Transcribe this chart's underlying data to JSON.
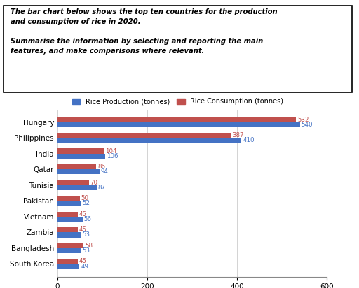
{
  "countries": [
    "Hungary",
    "Philippines",
    "India",
    "Qatar",
    "Tunisia",
    "Pakistan",
    "Vietnam",
    "Zambia",
    "Bangladesh",
    "South Korea"
  ],
  "production": [
    540,
    410,
    106,
    94,
    87,
    52,
    56,
    53,
    53,
    49
  ],
  "consumption": [
    532,
    387,
    104,
    86,
    70,
    50,
    45,
    45,
    58,
    45
  ],
  "prod_color": "#4472C4",
  "cons_color": "#C0504D",
  "legend_prod": "Rice Production (tonnes)",
  "legend_cons": "Rice Consumption (tonnes)",
  "xlim": [
    0,
    600
  ],
  "xticks": [
    0,
    200,
    400,
    600
  ],
  "bar_height": 0.32
}
